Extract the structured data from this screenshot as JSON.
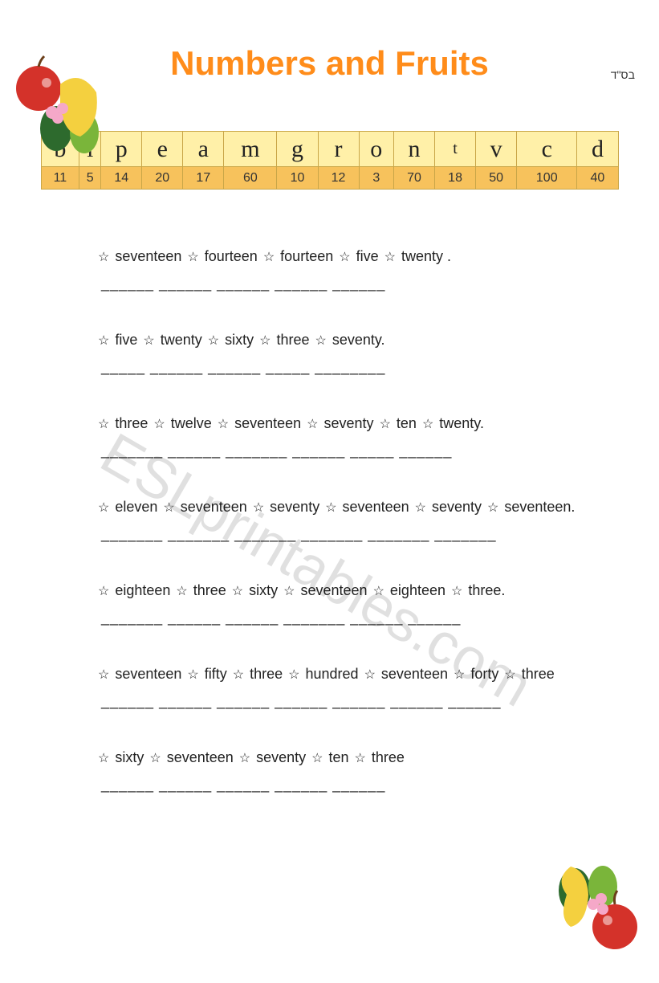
{
  "header": {
    "corner_text": "בס\"ד",
    "title": "Numbers and Fruits"
  },
  "watermark": "ESLprintables.com",
  "cipher": {
    "letters": [
      "b",
      "l",
      "p",
      "e",
      "a",
      "m",
      "g",
      "r",
      "o",
      "n",
      "t",
      "v",
      "c",
      "d"
    ],
    "numbers": [
      "11",
      "5",
      "14",
      "20",
      "17",
      "60",
      "10",
      "12",
      "3",
      "70",
      "18",
      "50",
      "100",
      "40"
    ],
    "letter_bg": "#fff0a8",
    "number_bg": "#f7c25c",
    "border_color": "#c9a648",
    "small_letter_index": 10
  },
  "star_glyph": "☆",
  "exercises": [
    {
      "words": [
        "seventeen",
        "fourteen",
        "fourteen",
        "five",
        "twenty ."
      ],
      "blanks": "______  ______  ______  ______  ______"
    },
    {
      "words": [
        "five",
        "twenty",
        "sixty",
        "three",
        "seventy."
      ],
      "blanks": "_____  ______  ______  _____  ________"
    },
    {
      "words": [
        "three",
        "twelve",
        "seventeen",
        "seventy",
        "ten",
        "twenty."
      ],
      "blanks": "_______  ______  _______  ______  _____  ______"
    },
    {
      "words": [
        "eleven",
        "seventeen",
        "seventy",
        "seventeen",
        "seventy",
        "seventeen."
      ],
      "blanks": "_______  _______  _______  _______  _______  _______"
    },
    {
      "words": [
        "eighteen",
        "three",
        "sixty",
        "seventeen",
        "eighteen",
        "three."
      ],
      "blanks": "_______  ______  ______  _______  ______  ______"
    },
    {
      "words": [
        "seventeen",
        "fifty",
        "three",
        "hundred",
        "seventeen",
        "forty",
        "three"
      ],
      "blanks": "______  ______  ______  ______  ______  ______  ______"
    },
    {
      "words": [
        "sixty",
        "seventeen",
        "seventy",
        "ten",
        "three"
      ],
      "blanks": "______  ______  ______  ______  ______"
    }
  ],
  "art": {
    "apple_color": "#d4322a",
    "pear_color": "#f4d03f",
    "leaf_dark": "#2d6a2d",
    "leaf_light": "#7ab53a",
    "flower_color": "#f5a8c8"
  }
}
